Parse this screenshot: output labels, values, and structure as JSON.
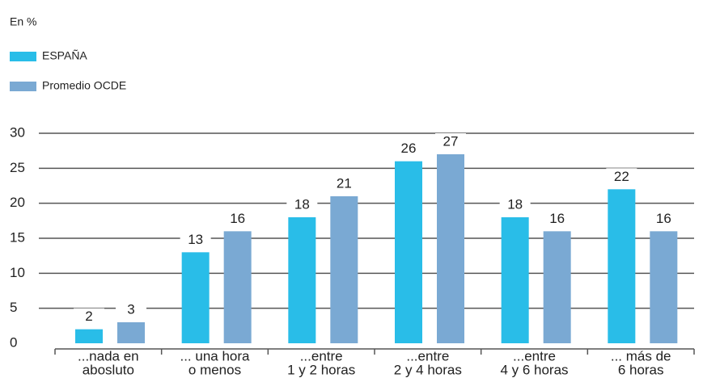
{
  "chart_data": {
    "type": "bar",
    "subtitle": "En %",
    "categories": [
      [
        "...nada en",
        "abosluto"
      ],
      [
        "... una hora",
        "o menos"
      ],
      [
        "...entre",
        "1 y 2 horas"
      ],
      [
        "...entre",
        "2 y 4 horas"
      ],
      [
        "...entre",
        "4 y 6 horas"
      ],
      [
        "... más de",
        "6 horas"
      ]
    ],
    "series": [
      {
        "name": "ESPAÑA",
        "color": "#29bde8",
        "values": [
          2,
          13,
          18,
          26,
          18,
          22
        ]
      },
      {
        "name": "Promedio OCDE",
        "color": "#7aa9d3",
        "values": [
          3,
          16,
          21,
          27,
          16,
          16
        ]
      }
    ],
    "ylim": [
      0,
      30
    ],
    "yticks": [
      0,
      5,
      10,
      15,
      20,
      25,
      30
    ],
    "grid": true,
    "legend": "top-left"
  }
}
